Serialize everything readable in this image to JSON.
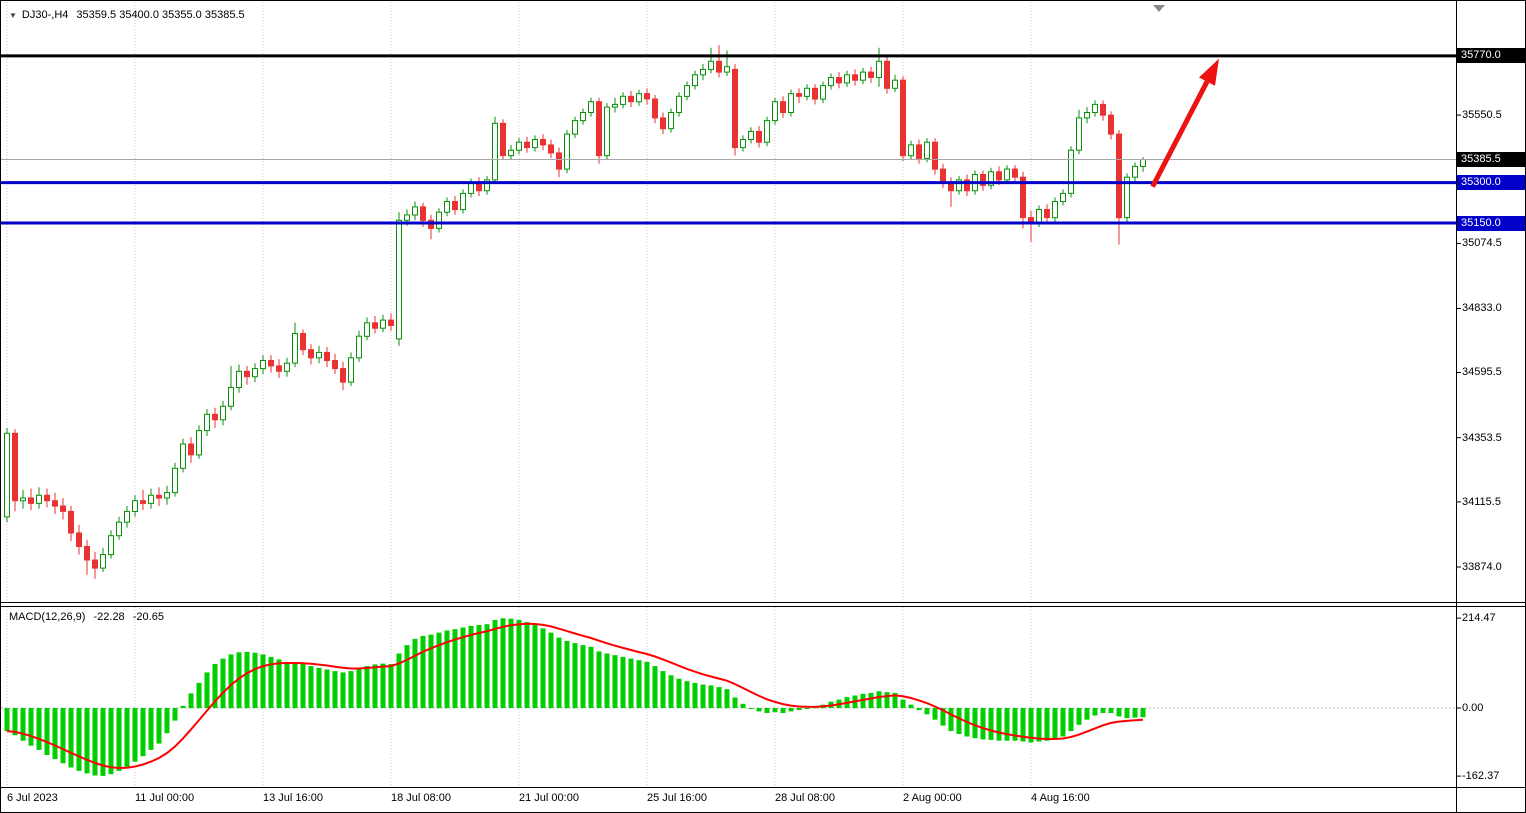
{
  "colors": {
    "background": "#FFFFFF",
    "bull_fill": "#FFFFFF",
    "bull_stroke": "#0B8F0B",
    "bear": "#E93232",
    "macd_hist": "#00CE00",
    "macd_signal": "#FF0000",
    "level_blue": "#0000C8",
    "level_black": "#000000",
    "bid_line": "#A8A8A8",
    "grid": "#C9C9C9",
    "arrow": "#EE1111",
    "axis_text": "#000000",
    "badge_text": "#FFFFFF"
  },
  "chart_data": {
    "type": "candlestick",
    "title": {
      "marker": "▼",
      "symbol_period": "DJ30-,H4",
      "quote": "35359.5 35400.0 35355.0 35385.5"
    },
    "symbol": "DJ30-",
    "timeframe": "H4",
    "quote_values": {
      "open": 35359.5,
      "high": 35400.0,
      "low": 35355.0,
      "close": 35385.5
    },
    "price_range": {
      "min": 33744,
      "max": 35970
    },
    "macd_range": {
      "min": -186,
      "max": 241
    },
    "price_labels": [
      {
        "label": "35550.5",
        "price": 35550.5
      },
      {
        "label": "35074.5",
        "price": 35074.5
      },
      {
        "label": "34833.0",
        "price": 34833.0
      },
      {
        "label": "34595.5",
        "price": 34595.5
      },
      {
        "label": "34353.5",
        "price": 34353.5
      },
      {
        "label": "34115.5",
        "price": 34115.5
      },
      {
        "label": "33874.0",
        "price": 33874.0
      }
    ],
    "price_badges": [
      {
        "label": "35770.0",
        "price": 35770.0,
        "bg": "#000000"
      },
      {
        "label": "35385.5",
        "price": 35385.5,
        "bg": "#000000"
      },
      {
        "label": "35300.0",
        "price": 35300.0,
        "bg": "#0000C8"
      },
      {
        "label": "35150.0",
        "price": 35150.0,
        "bg": "#0000C8"
      }
    ],
    "hlines": [
      {
        "price": 35770.0,
        "color": "#000000",
        "width": 3
      },
      {
        "price": 35300.0,
        "color": "#0000C8",
        "width": 3
      },
      {
        "price": 35150.0,
        "color": "#0000C8",
        "width": 3
      }
    ],
    "bid": {
      "price": 35385.5
    },
    "arrow": {
      "from": {
        "index": 143.2,
        "price": 35285
      },
      "to": {
        "index": 151.5,
        "price": 35760
      }
    },
    "time_axis": [
      {
        "index": 0,
        "label": "6 Jul 2023"
      },
      {
        "index": 16,
        "label": "11 Jul 00:00"
      },
      {
        "index": 32,
        "label": "13 Jul 16:00"
      },
      {
        "index": 48,
        "label": "18 Jul 08:00"
      },
      {
        "index": 64,
        "label": "21 Jul 00:00"
      },
      {
        "index": 80,
        "label": "25 Jul 16:00"
      },
      {
        "index": 96,
        "label": "28 Jul 08:00"
      },
      {
        "index": 112,
        "label": "2 Aug 00:00"
      },
      {
        "index": 128,
        "label": "4 Aug 16:00"
      }
    ],
    "candles": [
      [
        34060,
        34390,
        34040,
        34370
      ],
      [
        34370,
        34385,
        34080,
        34120
      ],
      [
        34120,
        34160,
        34090,
        34130
      ],
      [
        34130,
        34165,
        34085,
        34110
      ],
      [
        34110,
        34170,
        34090,
        34140
      ],
      [
        34140,
        34165,
        34095,
        34120
      ],
      [
        34120,
        34150,
        34070,
        34100
      ],
      [
        34100,
        34130,
        34050,
        34080
      ],
      [
        34080,
        34100,
        33970,
        34000
      ],
      [
        34000,
        34030,
        33920,
        33950
      ],
      [
        33950,
        33975,
        33845,
        33900
      ],
      [
        33900,
        33930,
        33830,
        33870
      ],
      [
        33870,
        33945,
        33855,
        33920
      ],
      [
        33920,
        34010,
        33905,
        33990
      ],
      [
        33990,
        34060,
        33975,
        34040
      ],
      [
        34040,
        34100,
        34020,
        34080
      ],
      [
        34080,
        34140,
        34060,
        34120
      ],
      [
        34120,
        34160,
        34085,
        34110
      ],
      [
        34110,
        34165,
        34090,
        34140
      ],
      [
        34140,
        34170,
        34100,
        34130
      ],
      [
        34130,
        34175,
        34105,
        34150
      ],
      [
        34150,
        34260,
        34135,
        34240
      ],
      [
        34240,
        34350,
        34225,
        34330
      ],
      [
        34330,
        34355,
        34260,
        34290
      ],
      [
        34290,
        34400,
        34275,
        34380
      ],
      [
        34380,
        34460,
        34360,
        34440
      ],
      [
        34440,
        34465,
        34390,
        34420
      ],
      [
        34420,
        34490,
        34400,
        34470
      ],
      [
        34470,
        34620,
        34455,
        34540
      ],
      [
        34540,
        34625,
        34520,
        34600
      ],
      [
        34600,
        34620,
        34550,
        34580
      ],
      [
        34580,
        34630,
        34560,
        34610
      ],
      [
        34610,
        34660,
        34590,
        34640
      ],
      [
        34640,
        34660,
        34595,
        34620
      ],
      [
        34620,
        34645,
        34575,
        34600
      ],
      [
        34600,
        34650,
        34580,
        34630
      ],
      [
        34630,
        34780,
        34615,
        34740
      ],
      [
        34740,
        34755,
        34660,
        34680
      ],
      [
        34680,
        34700,
        34625,
        34650
      ],
      [
        34650,
        34695,
        34630,
        34670
      ],
      [
        34670,
        34690,
        34615,
        34640
      ],
      [
        34640,
        34665,
        34590,
        34610
      ],
      [
        34610,
        34635,
        34530,
        34560
      ],
      [
        34560,
        34670,
        34545,
        34650
      ],
      [
        34650,
        34750,
        34635,
        34730
      ],
      [
        34730,
        34800,
        34715,
        34780
      ],
      [
        34780,
        34805,
        34740,
        34760
      ],
      [
        34760,
        34810,
        34745,
        34790
      ],
      [
        34790,
        34815,
        34750,
        34770
      ],
      [
        34720,
        35190,
        34695,
        35160
      ],
      [
        35160,
        35200,
        35140,
        35180
      ],
      [
        35180,
        35230,
        35160,
        35210
      ],
      [
        35210,
        35225,
        35135,
        35160
      ],
      [
        35160,
        35180,
        35090,
        35130
      ],
      [
        35130,
        35205,
        35115,
        35190
      ],
      [
        35190,
        35245,
        35175,
        35230
      ],
      [
        35230,
        35250,
        35180,
        35200
      ],
      [
        35200,
        35275,
        35185,
        35260
      ],
      [
        35260,
        35315,
        35245,
        35300
      ],
      [
        35300,
        35320,
        35250,
        35270
      ],
      [
        35270,
        35325,
        35255,
        35310
      ],
      [
        35310,
        35545,
        35295,
        35520
      ],
      [
        35520,
        35535,
        35385,
        35400
      ],
      [
        35400,
        35440,
        35385,
        35420
      ],
      [
        35420,
        35465,
        35405,
        35450
      ],
      [
        35450,
        35470,
        35410,
        35430
      ],
      [
        35430,
        35475,
        35415,
        35460
      ],
      [
        35460,
        35480,
        35420,
        35440
      ],
      [
        35440,
        35460,
        35390,
        35410
      ],
      [
        35410,
        35430,
        35320,
        35350
      ],
      [
        35350,
        35495,
        35335,
        35480
      ],
      [
        35480,
        35545,
        35465,
        35530
      ],
      [
        35530,
        35575,
        35515,
        35560
      ],
      [
        35560,
        35615,
        35545,
        35600
      ],
      [
        35600,
        35615,
        35370,
        35400
      ],
      [
        35400,
        35595,
        35385,
        35580
      ],
      [
        35580,
        35615,
        35560,
        35590
      ],
      [
        35590,
        35635,
        35575,
        35620
      ],
      [
        35620,
        35640,
        35580,
        35600
      ],
      [
        35600,
        35645,
        35585,
        35630
      ],
      [
        35630,
        35650,
        35590,
        35610
      ],
      [
        35610,
        35625,
        35520,
        35540
      ],
      [
        35540,
        35560,
        35480,
        35500
      ],
      [
        35500,
        35575,
        35485,
        35560
      ],
      [
        35560,
        35635,
        35545,
        35620
      ],
      [
        35620,
        35675,
        35605,
        35660
      ],
      [
        35660,
        35715,
        35645,
        35700
      ],
      [
        35700,
        35740,
        35680,
        35720
      ],
      [
        35720,
        35800,
        35705,
        35750
      ],
      [
        35750,
        35810,
        35690,
        35710
      ],
      [
        35710,
        35790,
        35695,
        35730
      ],
      [
        35720,
        35740,
        35400,
        35430
      ],
      [
        35430,
        35475,
        35415,
        35460
      ],
      [
        35460,
        35505,
        35445,
        35490
      ],
      [
        35490,
        35510,
        35430,
        35450
      ],
      [
        35450,
        35545,
        35435,
        35530
      ],
      [
        35530,
        35615,
        35515,
        35600
      ],
      [
        35600,
        35620,
        35540,
        35560
      ],
      [
        35560,
        35645,
        35545,
        35630
      ],
      [
        35630,
        35650,
        35595,
        35620
      ],
      [
        35620,
        35665,
        35605,
        35650
      ],
      [
        35650,
        35665,
        35590,
        35610
      ],
      [
        35610,
        35675,
        35595,
        35660
      ],
      [
        35660,
        35705,
        35645,
        35690
      ],
      [
        35690,
        35710,
        35650,
        35670
      ],
      [
        35670,
        35715,
        35655,
        35700
      ],
      [
        35700,
        35720,
        35660,
        35680
      ],
      [
        35680,
        35725,
        35665,
        35710
      ],
      [
        35710,
        35730,
        35670,
        35690
      ],
      [
        35690,
        35800,
        35655,
        35750
      ],
      [
        35750,
        35765,
        35630,
        35650
      ],
      [
        35650,
        35700,
        35635,
        35680
      ],
      [
        35680,
        35695,
        35380,
        35400
      ],
      [
        35400,
        35455,
        35385,
        35440
      ],
      [
        35440,
        35460,
        35370,
        35390
      ],
      [
        35390,
        35465,
        35375,
        35450
      ],
      [
        35450,
        35465,
        35330,
        35350
      ],
      [
        35350,
        35370,
        35280,
        35300
      ],
      [
        35300,
        35320,
        35210,
        35270
      ],
      [
        35270,
        35325,
        35255,
        35310
      ],
      [
        35310,
        35330,
        35250,
        35270
      ],
      [
        35270,
        35345,
        35255,
        35330
      ],
      [
        35330,
        35345,
        35270,
        35290
      ],
      [
        35290,
        35355,
        35275,
        35340
      ],
      [
        35340,
        35360,
        35290,
        35310
      ],
      [
        35310,
        35365,
        35295,
        35350
      ],
      [
        35350,
        35365,
        35300,
        35320
      ],
      [
        35320,
        35340,
        35130,
        35170
      ],
      [
        35170,
        35195,
        35080,
        35150
      ],
      [
        35150,
        35215,
        35135,
        35200
      ],
      [
        35200,
        35220,
        35150,
        35170
      ],
      [
        35170,
        35245,
        35155,
        35230
      ],
      [
        35230,
        35275,
        35215,
        35260
      ],
      [
        35260,
        35435,
        35245,
        35420
      ],
      [
        35420,
        35570,
        35405,
        35540
      ],
      [
        35540,
        35580,
        35520,
        35560
      ],
      [
        35560,
        35605,
        35545,
        35590
      ],
      [
        35590,
        35605,
        35530,
        35550
      ],
      [
        35550,
        35565,
        35460,
        35480
      ],
      [
        35480,
        35495,
        35070,
        35170
      ],
      [
        35170,
        35335,
        35155,
        35320
      ],
      [
        35320,
        35375,
        35305,
        35360
      ],
      [
        35360,
        35395,
        35340,
        35385.5
      ]
    ],
    "macd": {
      "name": "MACD(12,26,9)",
      "main_value": "-22.28",
      "signal_value": "-20.65",
      "signal_period": 9,
      "scale": [
        {
          "label": "214.47",
          "value": 214.47
        },
        {
          "label": "0.00",
          "value": 0
        },
        {
          "label": "-162.37",
          "value": -162.37
        }
      ],
      "main": [
        -55,
        -65,
        -78,
        -90,
        -100,
        -112,
        -122,
        -132,
        -142,
        -150,
        -156,
        -161,
        -162,
        -158,
        -150,
        -140,
        -128,
        -115,
        -100,
        -85,
        -60,
        -30,
        5,
        35,
        60,
        85,
        105,
        118,
        128,
        133,
        134,
        132,
        128,
        122,
        116,
        110,
        108,
        105,
        100,
        96,
        92,
        88,
        85,
        88,
        94,
        100,
        104,
        106,
        105,
        130,
        150,
        165,
        172,
        175,
        180,
        185,
        188,
        192,
        196,
        198,
        200,
        210,
        214,
        213,
        210,
        205,
        198,
        190,
        180,
        168,
        160,
        155,
        150,
        146,
        135,
        130,
        126,
        122,
        118,
        114,
        110,
        100,
        88,
        78,
        70,
        64,
        60,
        56,
        54,
        50,
        45,
        25,
        10,
        0,
        -8,
        -12,
        -10,
        -12,
        -8,
        -5,
        0,
        2,
        8,
        15,
        20,
        26,
        30,
        34,
        36,
        40,
        38,
        36,
        20,
        8,
        -5,
        -15,
        -28,
        -42,
        -55,
        -62,
        -68,
        -72,
        -75,
        -76,
        -78,
        -78,
        -78,
        -80,
        -82,
        -80,
        -78,
        -74,
        -68,
        -55,
        -40,
        -28,
        -18,
        -12,
        -12,
        -20,
        -24,
        -23,
        -22.28
      ]
    }
  }
}
